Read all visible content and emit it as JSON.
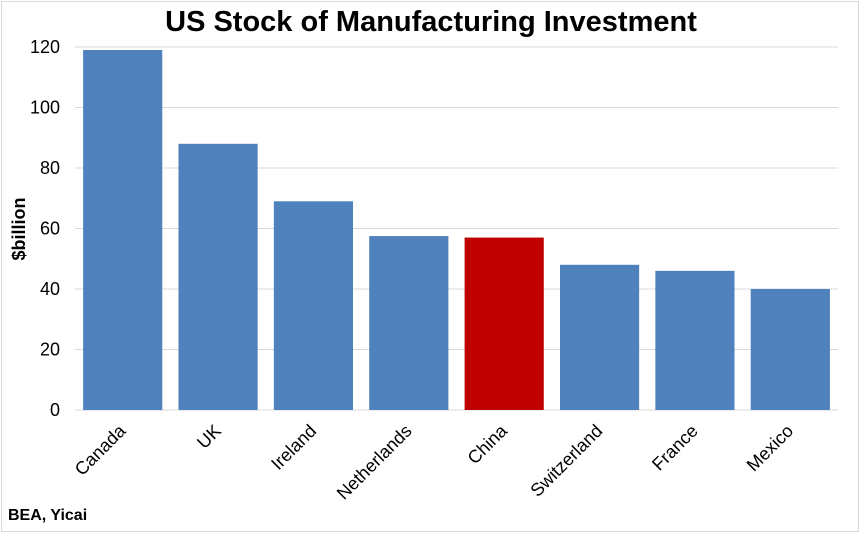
{
  "chart_data": {
    "type": "bar",
    "title": "US Stock of Manufacturing Investment",
    "ylabel": "$billion",
    "xlabel": "",
    "source": "BEA, Yicai",
    "categories": [
      "Canada",
      "UK",
      "Ireland",
      "Netherlands",
      "China",
      "Switzerland",
      "France",
      "Mexico"
    ],
    "values": [
      119,
      88,
      69,
      57.5,
      57,
      48,
      46,
      40
    ],
    "yticks": [
      "0",
      "20",
      "40",
      "60",
      "80",
      "100",
      "120"
    ],
    "ylim": [
      0,
      120
    ],
    "grid": true,
    "legend": "none",
    "colors": {
      "default": "#4f81bd",
      "highlight": "#c00000",
      "highlight_category": "China",
      "grid": "#d9d9d9"
    }
  }
}
